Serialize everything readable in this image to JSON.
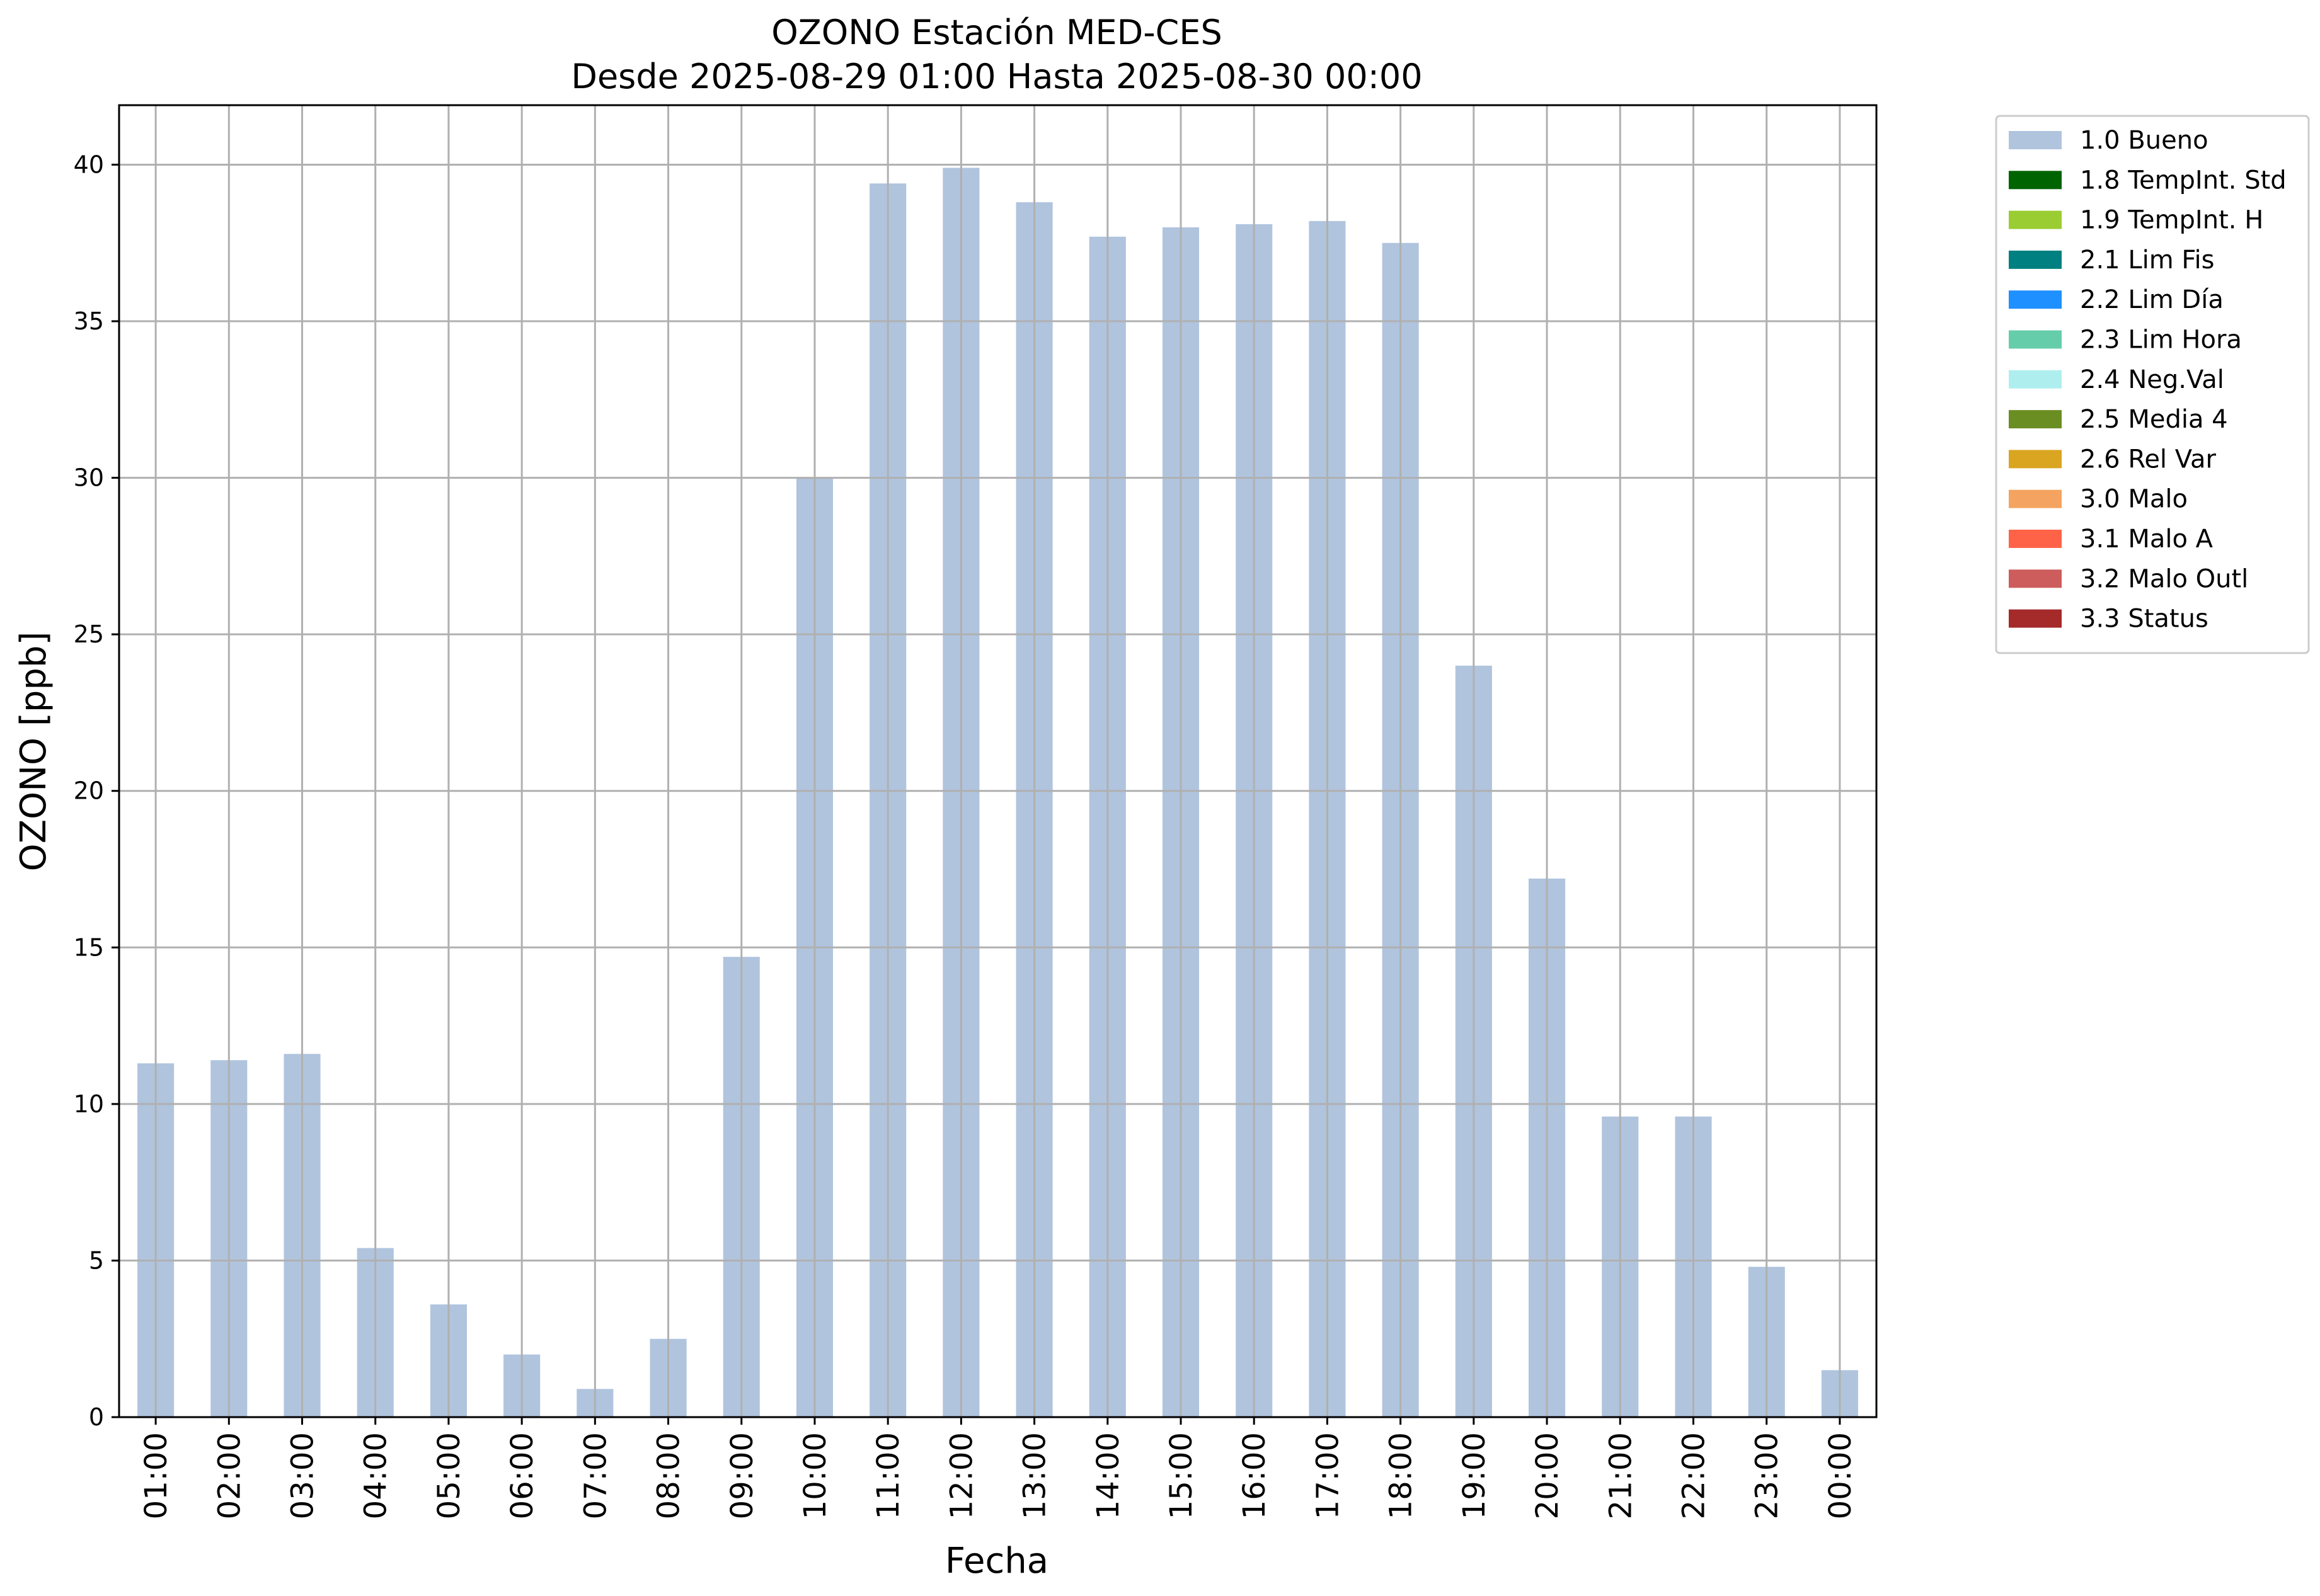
{
  "chart_data": {
    "type": "bar",
    "title": "OZONO Estación MED-CES",
    "subtitle": "Desde 2025-08-29 01:00 Hasta 2025-08-30 00:00",
    "xlabel": "Fecha",
    "ylabel": "OZONO [ppb]",
    "ylim": [
      0,
      41.9
    ],
    "yticks": [
      0,
      5,
      10,
      15,
      20,
      25,
      30,
      35,
      40
    ],
    "grid": true,
    "legend_position": "outside-top-right",
    "categories": [
      "01:00",
      "02:00",
      "03:00",
      "04:00",
      "05:00",
      "06:00",
      "07:00",
      "08:00",
      "09:00",
      "10:00",
      "11:00",
      "12:00",
      "13:00",
      "14:00",
      "15:00",
      "16:00",
      "17:00",
      "18:00",
      "19:00",
      "20:00",
      "21:00",
      "22:00",
      "23:00",
      "00:00"
    ],
    "series": [
      {
        "name": "1.0 Bueno",
        "color": "#b0c4de",
        "values": [
          11.3,
          11.4,
          11.6,
          5.4,
          3.6,
          2.0,
          0.9,
          2.5,
          14.7,
          30.0,
          39.4,
          39.9,
          38.8,
          37.7,
          38.0,
          38.1,
          38.2,
          37.5,
          24.0,
          17.2,
          9.6,
          9.6,
          4.8,
          1.5
        ]
      }
    ],
    "legend": [
      {
        "label": "1.0 Bueno",
        "color": "#b0c4de"
      },
      {
        "label": "1.8 TempInt. Std",
        "color": "#006400"
      },
      {
        "label": "1.9 TempInt. H",
        "color": "#9acd32"
      },
      {
        "label": "2.1 Lim Fis",
        "color": "#008080"
      },
      {
        "label": "2.2 Lim Día",
        "color": "#1e90ff"
      },
      {
        "label": "2.3 Lim Hora",
        "color": "#66cdaa"
      },
      {
        "label": "2.4 Neg.Val",
        "color": "#afeeee"
      },
      {
        "label": "2.5 Media 4",
        "color": "#6b8e23"
      },
      {
        "label": "2.6 Rel Var",
        "color": "#daa520"
      },
      {
        "label": "3.0 Malo",
        "color": "#f4a460"
      },
      {
        "label": "3.1 Malo A",
        "color": "#ff6347"
      },
      {
        "label": "3.2 Malo Outl",
        "color": "#cd5c5c"
      },
      {
        "label": "3.3 Status",
        "color": "#a52a2a"
      }
    ]
  }
}
